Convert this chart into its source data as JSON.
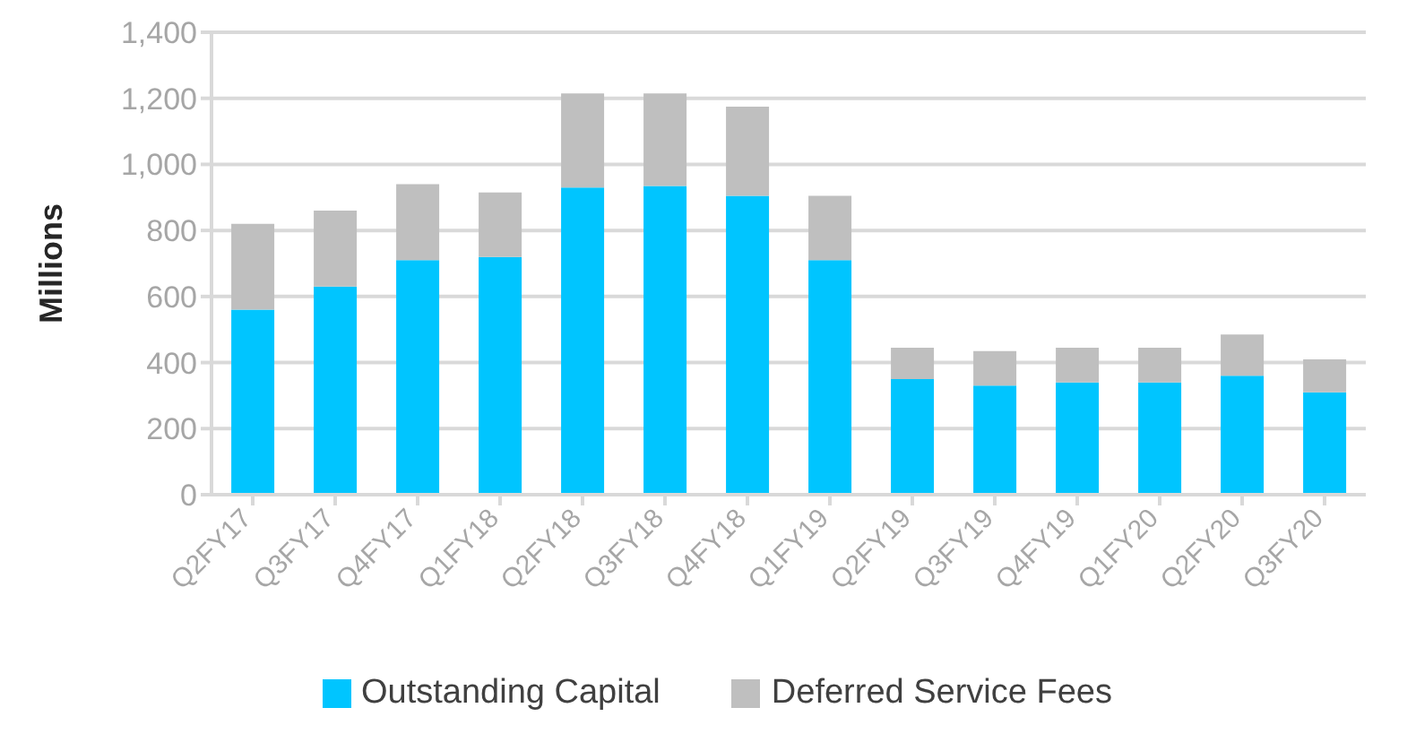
{
  "chart_data": {
    "type": "bar",
    "ylabel": "Millions",
    "stacked": true,
    "categories": [
      "Q2FY17",
      "Q3FY17",
      "Q4FY17",
      "Q1FY18",
      "Q2FY18",
      "Q3FY18",
      "Q4FY18",
      "Q1FY19",
      "Q2FY19",
      "Q3FY19",
      "Q4FY19",
      "Q1FY20",
      "Q2FY20",
      "Q3FY20"
    ],
    "series": [
      {
        "name": "Outstanding Capital",
        "color": "#00c5ff",
        "values": [
          560,
          630,
          710,
          720,
          930,
          935,
          905,
          710,
          350,
          330,
          340,
          340,
          360,
          310
        ]
      },
      {
        "name": "Deferred Service Fees",
        "color": "#bfbfbf",
        "values": [
          260,
          230,
          230,
          195,
          285,
          280,
          270,
          195,
          95,
          105,
          105,
          105,
          125,
          100
        ]
      }
    ],
    "ylim": [
      0,
      1400
    ],
    "yticks": [
      0,
      200,
      400,
      600,
      800,
      {
        "value": 1000,
        "label": "1,000"
      },
      {
        "value": 1200,
        "label": "1,200"
      },
      {
        "value": 1400,
        "label": "1,400"
      }
    ],
    "grid": "y",
    "legend": "bottom"
  }
}
